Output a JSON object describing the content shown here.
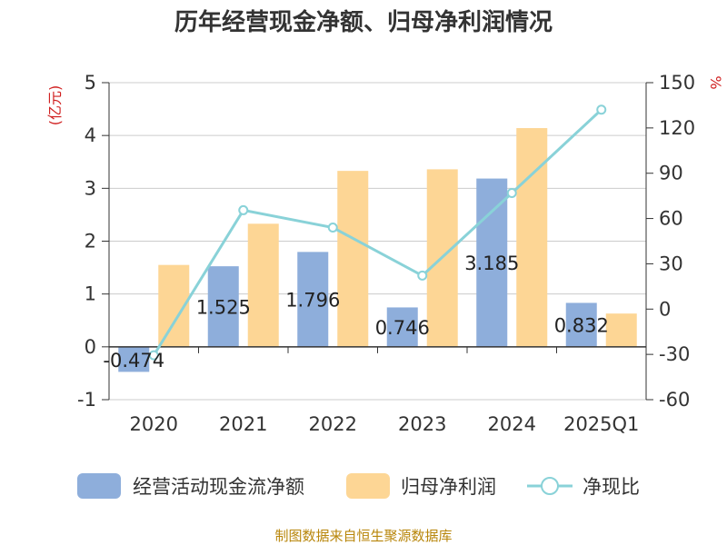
{
  "colors": {
    "cash_flow": "#8eaedb",
    "net_profit": "#fdd695",
    "ratio_line": "#89d2d8",
    "unit": "#d02020",
    "source": "#b8860b",
    "axis": "#333333",
    "grid": "#cccccc"
  },
  "source_text": "制图数据来自恒生聚源数据库",
  "chart_data": {
    "type": "bar",
    "title": "历年经营现金净额、归母净利润情况",
    "categories": [
      "2020",
      "2021",
      "2022",
      "2023",
      "2024",
      "2025Q1"
    ],
    "y_left": {
      "unit": "(亿元)",
      "range": [
        -1,
        5
      ],
      "ticks": [
        "-1",
        "0",
        "1",
        "2",
        "3",
        "4",
        "5"
      ]
    },
    "y_right": {
      "unit": "%",
      "range": [
        -60,
        150
      ],
      "ticks": [
        "-60",
        "-30",
        "0",
        "30",
        "60",
        "90",
        "120",
        "150"
      ]
    },
    "grid": true,
    "legend_position": "bottom",
    "series": [
      {
        "name": "经营活动现金流净额",
        "type": "bar",
        "axis": "left",
        "values": [
          -0.474,
          1.525,
          1.796,
          0.746,
          3.185,
          0.832
        ],
        "labels": [
          "-0.474",
          "1.525",
          "1.796",
          "0.746",
          "3.185",
          "0.832"
        ]
      },
      {
        "name": "归母净利润",
        "type": "bar",
        "axis": "left",
        "values": [
          1.55,
          2.33,
          3.33,
          3.36,
          4.14,
          0.63
        ]
      },
      {
        "name": "净现比",
        "type": "line",
        "axis": "right",
        "values": [
          -30.6,
          65.5,
          54.0,
          22.2,
          76.9,
          132.1
        ]
      }
    ]
  }
}
